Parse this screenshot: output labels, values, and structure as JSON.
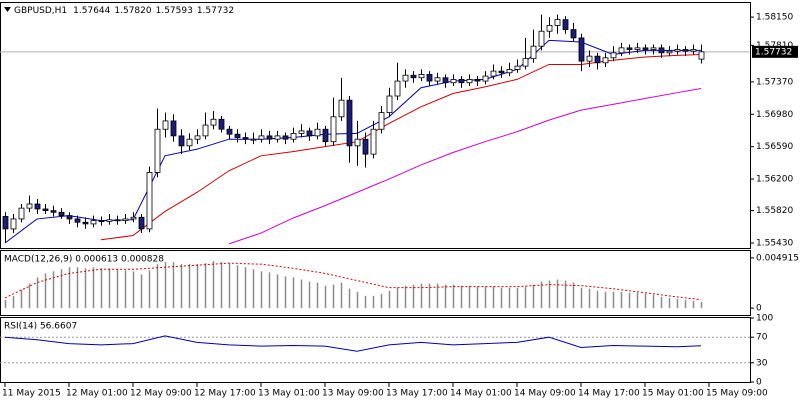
{
  "chart_data": [
    {
      "type": "candlestick",
      "title": "GBPUSD,H1",
      "header_values": [
        "1.57644",
        "1.57820",
        "1.57593",
        "1.57732"
      ],
      "ylim": [
        1.5537,
        1.5832
      ],
      "yticks": [
        {
          "value": 1.5815,
          "label": "1.58150"
        },
        {
          "value": 1.5781,
          "label": "1.57810"
        },
        {
          "value": 1.5737,
          "label": "1.57370"
        },
        {
          "value": 1.5698,
          "label": "1.56980"
        },
        {
          "value": 1.5659,
          "label": "1.56590"
        },
        {
          "value": 1.562,
          "label": "1.56200"
        },
        {
          "value": 1.5582,
          "label": "1.55820"
        },
        {
          "value": 1.5543,
          "label": "1.55430"
        }
      ],
      "current": {
        "value": 1.57732,
        "label": "1.57732"
      },
      "bull_color": "#ffffff",
      "bear_color": "#1c1c7a",
      "candles": [
        [
          1.5575,
          1.558,
          1.5543,
          1.556
        ],
        [
          1.556,
          1.5578,
          1.5555,
          1.5572
        ],
        [
          1.5572,
          1.559,
          1.5568,
          1.5585
        ],
        [
          1.5585,
          1.56,
          1.558,
          1.559
        ],
        [
          1.559,
          1.5596,
          1.5578,
          1.5584
        ],
        [
          1.5584,
          1.559,
          1.5578,
          1.5582
        ],
        [
          1.5582,
          1.5588,
          1.5575,
          1.558
        ],
        [
          1.558,
          1.5585,
          1.5572,
          1.5576
        ],
        [
          1.5576,
          1.558,
          1.5566,
          1.5572
        ],
        [
          1.5572,
          1.5576,
          1.5562,
          1.5568
        ],
        [
          1.5568,
          1.5574,
          1.556,
          1.5566
        ],
        [
          1.5566,
          1.5576,
          1.5562,
          1.557
        ],
        [
          1.557,
          1.5575,
          1.5564,
          1.5569
        ],
        [
          1.5569,
          1.5578,
          1.5565,
          1.5571
        ],
        [
          1.5571,
          1.5576,
          1.5565,
          1.557
        ],
        [
          1.557,
          1.5578,
          1.5566,
          1.5572
        ],
        [
          1.5572,
          1.558,
          1.5568,
          1.5574
        ],
        [
          1.5574,
          1.5578,
          1.5555,
          1.556
        ],
        [
          1.556,
          1.5635,
          1.5556,
          1.5628
        ],
        [
          1.5628,
          1.5705,
          1.5622,
          1.568
        ],
        [
          1.568,
          1.57,
          1.567,
          1.569
        ],
        [
          1.569,
          1.5698,
          1.5665,
          1.5672
        ],
        [
          1.5672,
          1.568,
          1.565,
          1.566
        ],
        [
          1.566,
          1.5675,
          1.5655,
          1.5668
        ],
        [
          1.5668,
          1.568,
          1.5662,
          1.5672
        ],
        [
          1.5672,
          1.57,
          1.5668,
          1.5685
        ],
        [
          1.5685,
          1.5702,
          1.568,
          1.5692
        ],
        [
          1.5692,
          1.5696,
          1.5676,
          1.568
        ],
        [
          1.568,
          1.5684,
          1.5668,
          1.5674
        ],
        [
          1.5674,
          1.568,
          1.5664,
          1.567
        ],
        [
          1.567,
          1.5676,
          1.5662,
          1.5668
        ],
        [
          1.5668,
          1.5676,
          1.5662,
          1.5668
        ],
        [
          1.5668,
          1.568,
          1.5664,
          1.5672
        ],
        [
          1.5672,
          1.5678,
          1.5662,
          1.5668
        ],
        [
          1.5668,
          1.5678,
          1.5664,
          1.5672
        ],
        [
          1.5672,
          1.5676,
          1.5662,
          1.5668
        ],
        [
          1.5668,
          1.5682,
          1.5664,
          1.5675
        ],
        [
          1.5675,
          1.5686,
          1.567,
          1.5678
        ],
        [
          1.5678,
          1.5682,
          1.5666,
          1.5672
        ],
        [
          1.5672,
          1.5688,
          1.5668,
          1.568
        ],
        [
          1.568,
          1.5684,
          1.566,
          1.5665
        ],
        [
          1.5665,
          1.5718,
          1.566,
          1.5695
        ],
        [
          1.5695,
          1.5742,
          1.569,
          1.5715
        ],
        [
          1.5715,
          1.572,
          1.564,
          1.566
        ],
        [
          1.566,
          1.569,
          1.5636,
          1.5668
        ],
        [
          1.5668,
          1.5676,
          1.5634,
          1.565
        ],
        [
          1.565,
          1.569,
          1.5645,
          1.568
        ],
        [
          1.568,
          1.5708,
          1.5675,
          1.57
        ],
        [
          1.57,
          1.573,
          1.5695,
          1.572
        ],
        [
          1.572,
          1.576,
          1.5715,
          1.5738
        ],
        [
          1.5738,
          1.5752,
          1.573,
          1.5745
        ],
        [
          1.5745,
          1.575,
          1.5736,
          1.5742
        ],
        [
          1.5742,
          1.5752,
          1.5738,
          1.5746
        ],
        [
          1.5746,
          1.575,
          1.5732,
          1.5738
        ],
        [
          1.5738,
          1.5748,
          1.5734,
          1.5742
        ],
        [
          1.5742,
          1.5746,
          1.573,
          1.5736
        ],
        [
          1.5736,
          1.5746,
          1.5732,
          1.574
        ],
        [
          1.574,
          1.5744,
          1.573,
          1.5736
        ],
        [
          1.5736,
          1.5746,
          1.5732,
          1.574
        ],
        [
          1.574,
          1.5744,
          1.5732,
          1.5738
        ],
        [
          1.5738,
          1.575,
          1.5734,
          1.5744
        ],
        [
          1.5744,
          1.5758,
          1.574,
          1.575
        ],
        [
          1.575,
          1.5756,
          1.5742,
          1.5748
        ],
        [
          1.5748,
          1.576,
          1.5744,
          1.5752
        ],
        [
          1.5752,
          1.5764,
          1.5748,
          1.5756
        ],
        [
          1.5756,
          1.579,
          1.5752,
          1.5765
        ],
        [
          1.5765,
          1.58,
          1.576,
          1.578
        ],
        [
          1.578,
          1.5818,
          1.5775,
          1.5798
        ],
        [
          1.5798,
          1.5815,
          1.579,
          1.5805
        ],
        [
          1.5805,
          1.5818,
          1.5795,
          1.5812
        ],
        [
          1.5812,
          1.5816,
          1.5795,
          1.58
        ],
        [
          1.58,
          1.5808,
          1.5785,
          1.579
        ],
        [
          1.579,
          1.5795,
          1.575,
          1.5762
        ],
        [
          1.5762,
          1.5775,
          1.5755,
          1.5768
        ],
        [
          1.5768,
          1.5772,
          1.5752,
          1.576
        ],
        [
          1.576,
          1.5772,
          1.5755,
          1.5766
        ],
        [
          1.5766,
          1.578,
          1.5762,
          1.5772
        ],
        [
          1.5772,
          1.5784,
          1.5768,
          1.5778
        ],
        [
          1.5778,
          1.5782,
          1.577,
          1.5776
        ],
        [
          1.5776,
          1.5784,
          1.5772,
          1.5778
        ],
        [
          1.5778,
          1.5782,
          1.577,
          1.5776
        ],
        [
          1.5776,
          1.5782,
          1.577,
          1.5778
        ],
        [
          1.5778,
          1.5782,
          1.5766,
          1.5772
        ],
        [
          1.5772,
          1.578,
          1.5768,
          1.5774
        ],
        [
          1.5774,
          1.5782,
          1.577,
          1.5776
        ],
        [
          1.5776,
          1.578,
          1.5768,
          1.5774
        ],
        [
          1.5774,
          1.5782,
          1.577,
          1.5776
        ],
        [
          1.57644,
          1.5782,
          1.57593,
          1.57732
        ]
      ],
      "x": [
        0,
        4,
        8,
        12,
        16,
        20,
        24,
        28,
        32,
        36,
        40,
        44,
        48,
        52,
        56,
        60,
        64,
        68,
        72,
        76,
        80,
        84,
        87
      ],
      "series": [
        {
          "color": "#0000b0",
          "values": [
            1.5543,
            1.5572,
            1.5576,
            1.557,
            1.5571,
            1.5648,
            1.5656,
            1.5668,
            1.5668,
            1.567,
            1.5674,
            1.5675,
            1.5695,
            1.573,
            1.5738,
            1.574,
            1.5752,
            1.5787,
            1.5785,
            1.577,
            1.5775,
            1.5775,
            1.5775
          ]
        },
        {
          "color": "#d00000",
          "values": [
            null,
            null,
            null,
            1.5547,
            1.5552,
            1.5581,
            1.5604,
            1.563,
            1.5648,
            1.5653,
            1.5659,
            1.5665,
            1.5687,
            1.5707,
            1.5723,
            1.5731,
            1.574,
            1.5758,
            1.5758,
            1.5763,
            1.5767,
            1.5769,
            1.577
          ]
        },
        {
          "color": "#d000d0",
          "values": [
            null,
            null,
            null,
            null,
            null,
            null,
            null,
            1.5542,
            1.5555,
            1.5573,
            1.5588,
            1.5604,
            1.562,
            1.5637,
            1.5652,
            1.5665,
            1.5677,
            1.5691,
            1.5703,
            1.571,
            1.5717,
            1.5724,
            1.5729
          ]
        }
      ]
    },
    {
      "type": "macd",
      "title": "MACD(12,26,9) 0.000613 0.000828",
      "ylim": [
        -0.000675,
        0.00559
      ],
      "yticks": [
        0.004915,
        0
      ],
      "color": "#8c8c8c",
      "values": [
        0.0008,
        0.0012,
        0.0018,
        0.0024,
        0.003,
        0.0034,
        0.0036,
        0.0038,
        0.004,
        0.004,
        0.0039,
        0.004,
        0.0039,
        0.0039,
        0.0038,
        0.0037,
        0.0036,
        0.0033,
        0.0037,
        0.0043,
        0.0045,
        0.0045,
        0.0043,
        0.0043,
        0.0043,
        0.0044,
        0.0046,
        0.0045,
        0.0044,
        0.0042,
        0.004,
        0.0038,
        0.0036,
        0.0035,
        0.0033,
        0.0031,
        0.003,
        0.0028,
        0.0026,
        0.0025,
        0.0022,
        0.0023,
        0.0025,
        0.0019,
        0.0016,
        0.0012,
        0.0012,
        0.0014,
        0.0017,
        0.002,
        0.0022,
        0.0023,
        0.0024,
        0.0024,
        0.0024,
        0.0023,
        0.0023,
        0.0022,
        0.0022,
        0.0021,
        0.0021,
        0.0021,
        0.002,
        0.002,
        0.002,
        0.0021,
        0.0023,
        0.0026,
        0.0027,
        0.0028,
        0.0027,
        0.0025,
        0.002,
        0.0019,
        0.0017,
        0.0016,
        0.0016,
        0.0016,
        0.0015,
        0.0015,
        0.0014,
        0.0013,
        0.0011,
        0.001,
        0.0009,
        0.0008,
        0.0007,
        0.000613
      ],
      "signal": {
        "color": "#d00000",
        "x": [
          0,
          4,
          8,
          12,
          16,
          20,
          24,
          28,
          32,
          36,
          40,
          44,
          48,
          52,
          56,
          60,
          64,
          68,
          72,
          76,
          80,
          84,
          87
        ],
        "values": [
          0.001,
          0.0025,
          0.0034,
          0.0038,
          0.0038,
          0.004,
          0.0042,
          0.0044,
          0.0043,
          0.0039,
          0.0034,
          0.0027,
          0.002,
          0.002,
          0.0021,
          0.0021,
          0.0021,
          0.0023,
          0.0022,
          0.0019,
          0.0015,
          0.0011,
          0.000828
        ]
      }
    },
    {
      "type": "line",
      "title": "RSI(14) 56.6607",
      "ylim": [
        0,
        100
      ],
      "yticks": [
        100,
        70,
        30,
        0
      ],
      "levels": [
        70,
        30
      ],
      "color": "#0000b0",
      "x": [
        0,
        4,
        8,
        12,
        16,
        20,
        24,
        28,
        32,
        36,
        40,
        44,
        48,
        52,
        56,
        60,
        64,
        68,
        72,
        76,
        80,
        84,
        87
      ],
      "values": [
        70,
        66,
        60,
        58,
        60,
        72,
        62,
        58,
        56,
        57,
        56,
        48,
        58,
        62,
        58,
        60,
        62,
        70,
        54,
        57,
        56,
        55,
        56.6607
      ]
    }
  ],
  "x_axis_labels": [
    "11 May 2015",
    "12 May 01:00",
    "12 May 09:00",
    "12 May 17:00",
    "13 May 01:00",
    "13 May 09:00",
    "13 May 17:00",
    "14 May 01:00",
    "14 May 09:00",
    "14 May 17:00",
    "15 May 01:00",
    "15 May 09:00"
  ]
}
